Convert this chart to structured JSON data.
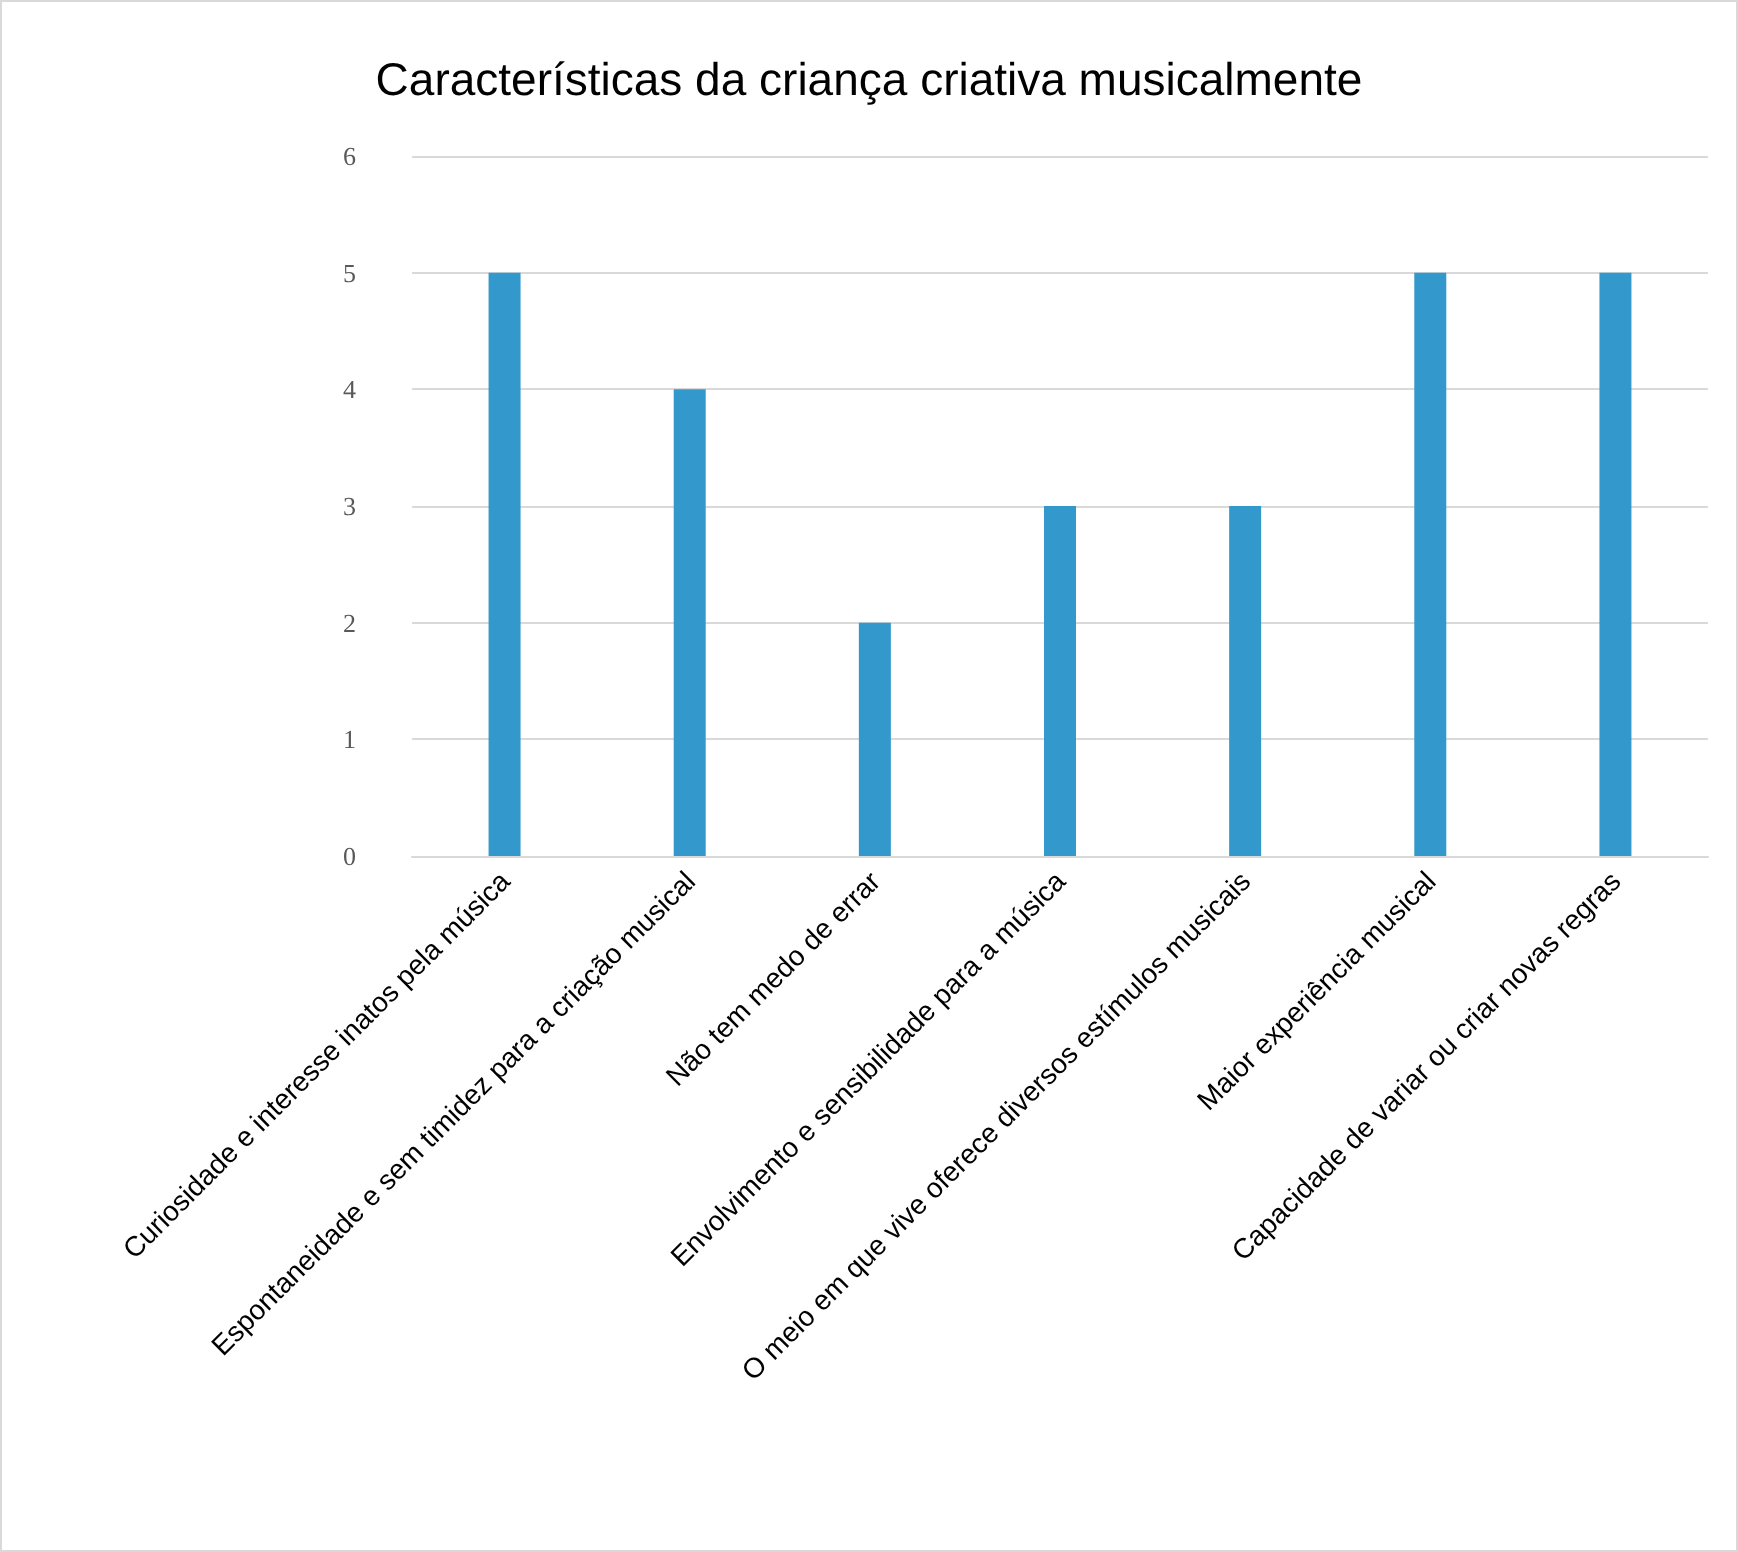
{
  "chart_data": {
    "type": "bar",
    "title": "Características da criança criativa musicalmente",
    "categories": [
      "Curiosidade e interesse inatos pela música",
      "Espontaneidade e sem timidez para a criação musical",
      "Não tem medo de errar",
      "Envolvimento e sensibilidade para a música",
      "O meio em que vive oferece diversos estímulos musicais",
      "Maior experiência musical",
      "Capacidade de variar ou criar novas regras"
    ],
    "values": [
      5,
      4,
      2,
      3,
      3,
      5,
      5
    ],
    "color": "#3399cc",
    "ylim": [
      0,
      6
    ],
    "yticks": [
      0,
      1,
      2,
      3,
      4,
      5,
      6
    ],
    "grid": "y"
  }
}
